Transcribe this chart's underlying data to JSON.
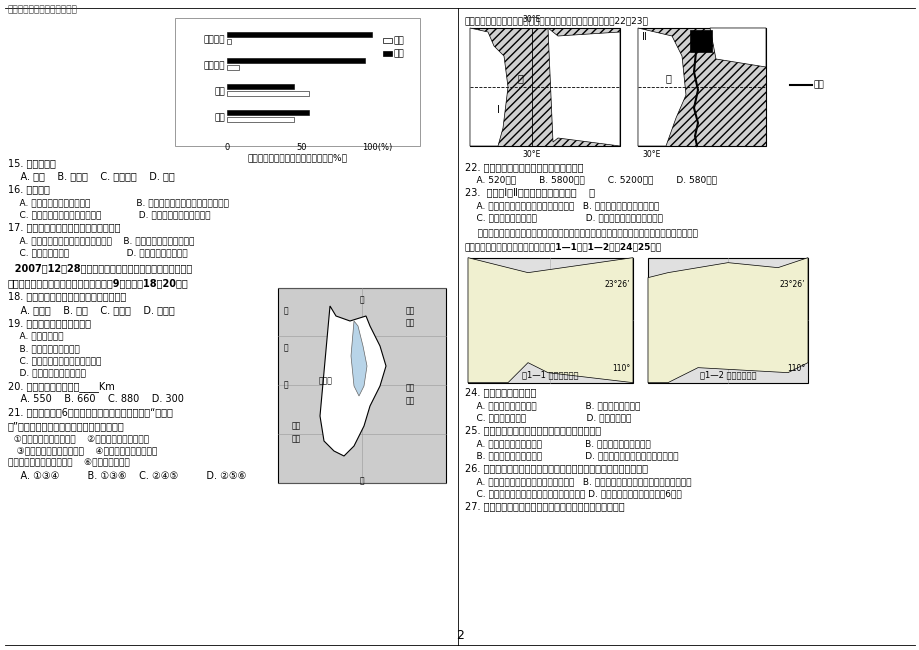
{
  "title_text": "志度决定高度；规范铸就成功",
  "page_num": "2",
  "bg_color": "#ffffff",
  "bar_categories": [
    "淡水资源",
    "科技力量",
    "人口",
    "面积"
  ],
  "east_values": [
    3,
    8,
    55,
    45
  ],
  "west_values": [
    97,
    92,
    45,
    55
  ],
  "bar_title": "某国两大经济地带的基本资源指标（%）",
  "legend_east": "东部",
  "legend_west": "西部"
}
